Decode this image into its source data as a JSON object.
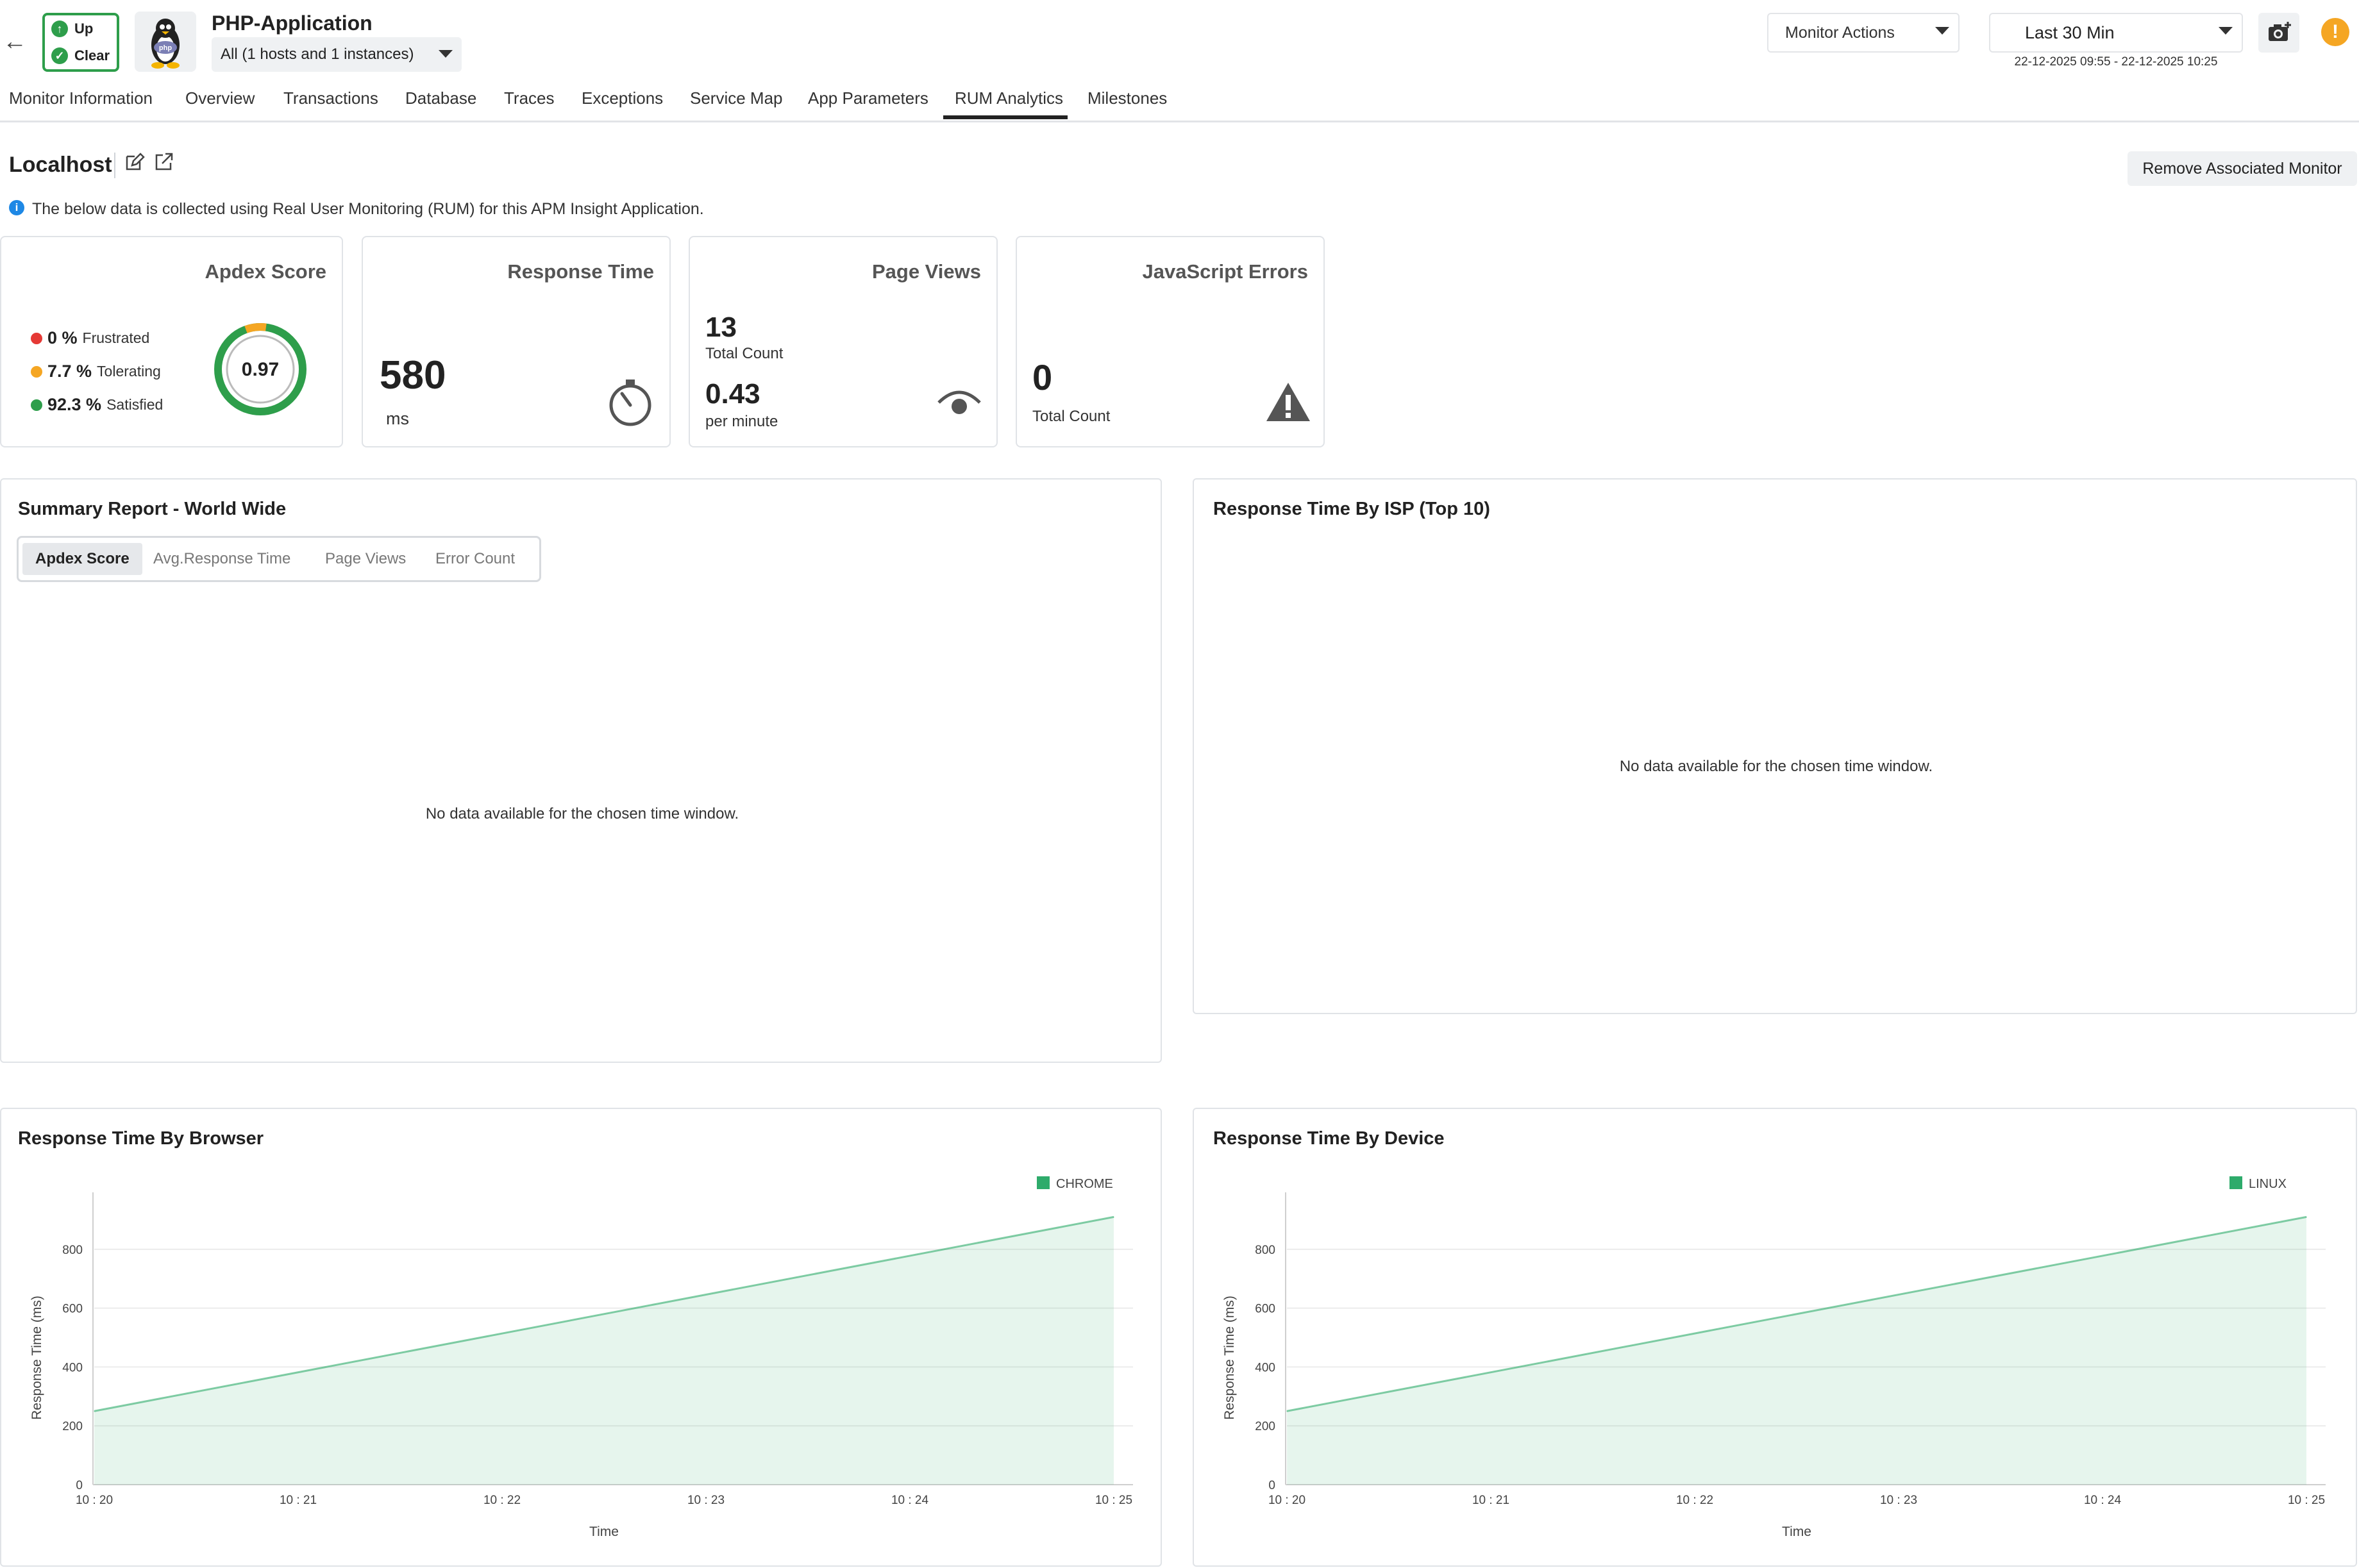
{
  "header": {
    "back_icon": "arrow-left-icon",
    "status": {
      "availability": "Up",
      "health": "Clear",
      "color": "#2e9e4b"
    },
    "app_icon": "php-linux-penguin-icon",
    "app_title": "PHP-Application",
    "host_filter": "All (1 hosts and 1 instances)",
    "monitor_actions": "Monitor Actions",
    "time_range": "Last 30 Min",
    "time_range_sub": "22-12-2025 09:55 - 22-12-2025 10:25",
    "camera_icon": "camera-icon",
    "alert_icon": "alert-icon",
    "alert_glyph": "!"
  },
  "tabs": [
    {
      "label": "Monitor Information"
    },
    {
      "label": "Overview"
    },
    {
      "label": "Transactions"
    },
    {
      "label": "Database"
    },
    {
      "label": "Traces"
    },
    {
      "label": "Exceptions"
    },
    {
      "label": "Service Map"
    },
    {
      "label": "App Parameters"
    },
    {
      "label": "RUM Analytics",
      "active": true
    },
    {
      "label": "Milestones"
    }
  ],
  "rum": {
    "monitor_name": "Localhost",
    "remove_button": "Remove Associated Monitor",
    "info_text": "The below data is collected using Real User Monitoring (RUM) for this APM Insight Application."
  },
  "cards": {
    "apdex": {
      "title": "Apdex Score",
      "score": "0.97",
      "frustrated_pct": "0 %",
      "frustrated_label": "Frustrated",
      "tolerating_pct": "7.7 %",
      "tolerating_label": "Tolerating",
      "satisfied_pct": "92.3 %",
      "satisfied_label": "Satisfied",
      "colors": {
        "frustrated": "#e53935",
        "tolerating": "#f5a623",
        "satisfied": "#2e9e4b"
      },
      "ring": {
        "satisfied": 0.923,
        "tolerating": 0.077
      }
    },
    "response_time": {
      "title": "Response Time",
      "value": "580",
      "unit": "ms",
      "icon": "timer-icon"
    },
    "page_views": {
      "title": "Page Views",
      "total": "13",
      "total_label": "Total Count",
      "rate": "0.43",
      "rate_label": "per minute",
      "icon": "eye-icon"
    },
    "js_errors": {
      "title": "JavaScript Errors",
      "total": "0",
      "total_label": "Total Count",
      "icon": "warning-icon"
    }
  },
  "summary": {
    "title": "Summary Report - World Wide",
    "tabs": [
      {
        "label": "Apdex Score",
        "active": true
      },
      {
        "label": "Avg.Response Time"
      },
      {
        "label": "Page Views"
      },
      {
        "label": "Error Count"
      }
    ],
    "no_data": "No data available for the chosen time window."
  },
  "isp": {
    "title": "Response Time By ISP (Top 10)",
    "no_data": "No data available for the chosen time window."
  },
  "browser_panel": {
    "title": "Response Time By Browser"
  },
  "device_panel": {
    "title": "Response Time By Device"
  },
  "chart_data": [
    {
      "type": "area",
      "title": "Response Time By Browser",
      "xlabel": "Time",
      "ylabel": "Response Time (ms)",
      "x": [
        "10 : 20",
        "10 : 21",
        "10 : 22",
        "10 : 23",
        "10 : 24",
        "10 : 25"
      ],
      "yticks": [
        0,
        200,
        400,
        600,
        800
      ],
      "ylim": [
        0,
        950
      ],
      "series": [
        {
          "name": "CHROME",
          "points": [
            [
              0,
              250
            ],
            [
              5,
              910
            ]
          ]
        }
      ],
      "legend": "top-right",
      "grid": true,
      "color": "#2eab6b"
    },
    {
      "type": "area",
      "title": "Response Time By Device",
      "xlabel": "Time",
      "ylabel": "Response Time (ms)",
      "x": [
        "10 : 20",
        "10 : 21",
        "10 : 22",
        "10 : 23",
        "10 : 24",
        "10 : 25"
      ],
      "yticks": [
        0,
        200,
        400,
        600,
        800
      ],
      "ylim": [
        0,
        950
      ],
      "series": [
        {
          "name": "LINUX",
          "points": [
            [
              0,
              250
            ],
            [
              5,
              910
            ]
          ]
        }
      ],
      "legend": "top-right",
      "grid": true,
      "color": "#2eab6b"
    }
  ]
}
